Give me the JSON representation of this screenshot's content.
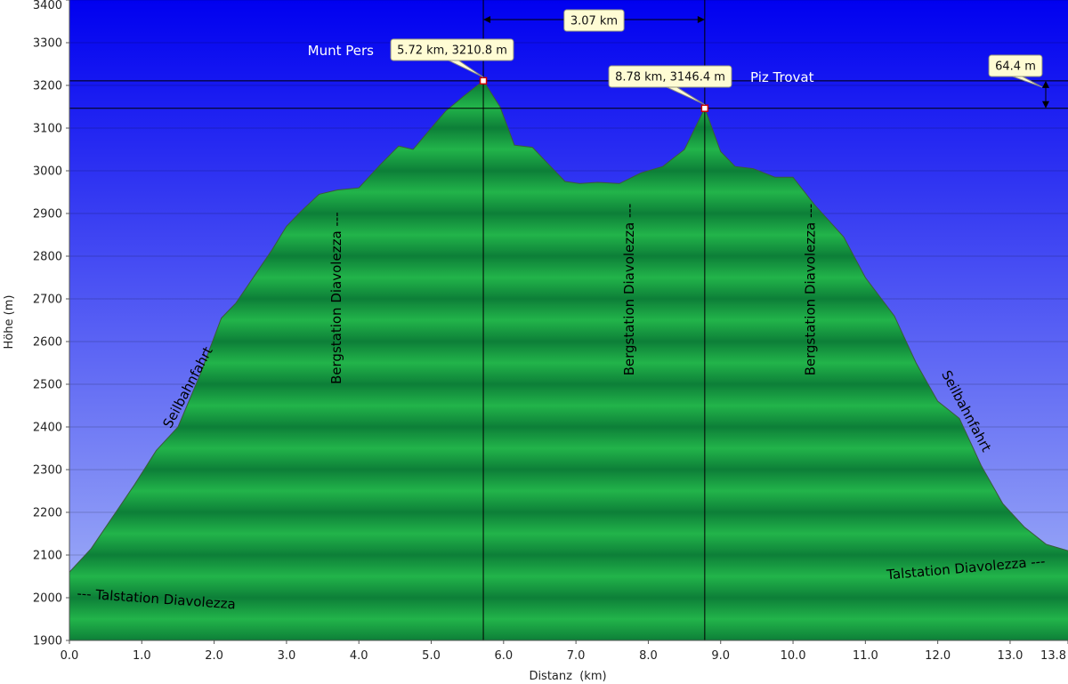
{
  "chart_data": {
    "type": "area",
    "xlabel": "Distanz  (km)",
    "ylabel": "Höhe (m)",
    "xlim": [
      0,
      13.8
    ],
    "ylim": [
      1900,
      3400
    ],
    "x_ticks": [
      "0.0",
      "1.0",
      "2.0",
      "3.0",
      "4.0",
      "5.0",
      "6.0",
      "7.0",
      "8.0",
      "9.0",
      "10.0",
      "11.0",
      "12.0",
      "13.0",
      "13.8"
    ],
    "x_tick_values": [
      0,
      1,
      2,
      3,
      4,
      5,
      6,
      7,
      8,
      9,
      10,
      11,
      12,
      13,
      13.8
    ],
    "y_ticks": [
      "1900",
      "2000",
      "2100",
      "2200",
      "2300",
      "2400",
      "2500",
      "2600",
      "2700",
      "2800",
      "2900",
      "3000",
      "3100",
      "3200",
      "3300",
      "3400"
    ],
    "y_tick_values": [
      1900,
      2000,
      2100,
      2200,
      2300,
      2400,
      2500,
      2600,
      2700,
      2800,
      2900,
      3000,
      3100,
      3200,
      3300,
      3400
    ],
    "grid": "horizontal",
    "series": [
      {
        "x": [
          0.0,
          0.3,
          0.6,
          0.9,
          1.2,
          1.5,
          1.8,
          2.1,
          2.3,
          2.5,
          2.8,
          3.0,
          3.2,
          3.45,
          3.7,
          4.0,
          4.3,
          4.55,
          4.75,
          5.0,
          5.2,
          5.45,
          5.72,
          5.95,
          6.15,
          6.4,
          6.65,
          6.85,
          7.05,
          7.3,
          7.6,
          7.9,
          8.2,
          8.5,
          8.78,
          9.0,
          9.2,
          9.45,
          9.75,
          10.0,
          10.3,
          10.7,
          11.0,
          11.4,
          11.7,
          12.0,
          12.3,
          12.6,
          12.9,
          13.2,
          13.5,
          13.8
        ],
        "y": [
          2060,
          2115,
          2190,
          2265,
          2345,
          2400,
          2520,
          2655,
          2690,
          2740,
          2815,
          2870,
          2905,
          2945,
          2955,
          2960,
          3015,
          3058,
          3050,
          3100,
          3140,
          3175,
          3210.8,
          3150,
          3060,
          3055,
          3010,
          2975,
          2970,
          2973,
          2970,
          2995,
          3010,
          3050,
          3146.4,
          3045,
          3010,
          3005,
          2985,
          2985,
          2920,
          2845,
          2750,
          2660,
          2550,
          2460,
          2420,
          2310,
          2220,
          2165,
          2125,
          2110
        ]
      }
    ],
    "markers": [
      {
        "name": "Munt Pers",
        "x": 5.72,
        "y": 3210.8,
        "label": "5.72 km, 3210.8 m"
      },
      {
        "name": "Piz Trovat",
        "x": 8.78,
        "y": 3146.4,
        "label": "8.78 km, 3146.4 m"
      }
    ],
    "distance_label": "3.07 km",
    "height_diff_label": "64.4 m",
    "annotations": [
      {
        "text": "--- Talstation Diavolezza",
        "x": 0.1,
        "y": 2000,
        "angle": 4
      },
      {
        "text": "Talstation Diavolezza ---",
        "x": 11.3,
        "y": 2043,
        "angle": -5
      },
      {
        "text": "Seilbahnfahrt",
        "x": 1.4,
        "y": 2395,
        "angle": -62
      },
      {
        "text": "Seilbahnfahrt",
        "x": 12.05,
        "y": 2525,
        "angle": 62
      },
      {
        "text": "Bergstation Diavolezza ---",
        "x": 3.75,
        "y": 2500,
        "angle": -90
      },
      {
        "text": "Bergstation Diavolezza ---",
        "x": 7.8,
        "y": 2520,
        "angle": -90
      },
      {
        "text": "Bergstation Diavolezza ---",
        "x": 10.3,
        "y": 2520,
        "angle": -90
      }
    ],
    "colors": {
      "sky_top": "#0000f0",
      "sky_bottom": "#a9b9f7",
      "fill_dark": "#0d7f38",
      "fill_light": "#22b44a",
      "callout_bg": "#fffcd4",
      "marker_stroke": "#cc0000"
    }
  }
}
